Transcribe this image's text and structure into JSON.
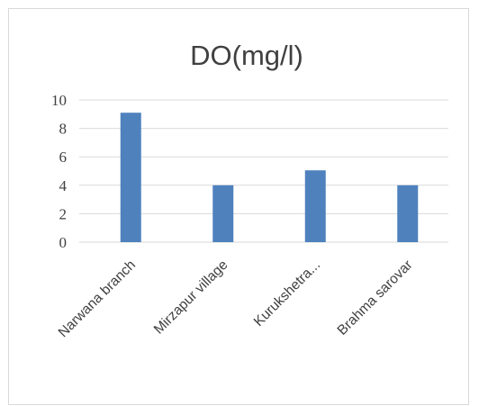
{
  "chart_data": {
    "type": "bar",
    "title": "DO(mg/l)",
    "xlabel": "",
    "ylabel": "",
    "categories": [
      "Narwana branch",
      "Mirzapur village",
      "Kurukshetra...",
      "Brahma sarovar"
    ],
    "values": [
      9.1,
      4,
      5.05,
      4
    ],
    "ylim": [
      0,
      10
    ],
    "yticks": [
      "0",
      "2",
      "4",
      "6",
      "8",
      "10"
    ],
    "grid": true,
    "legend": "none",
    "bar_color": "#4f81bd"
  }
}
